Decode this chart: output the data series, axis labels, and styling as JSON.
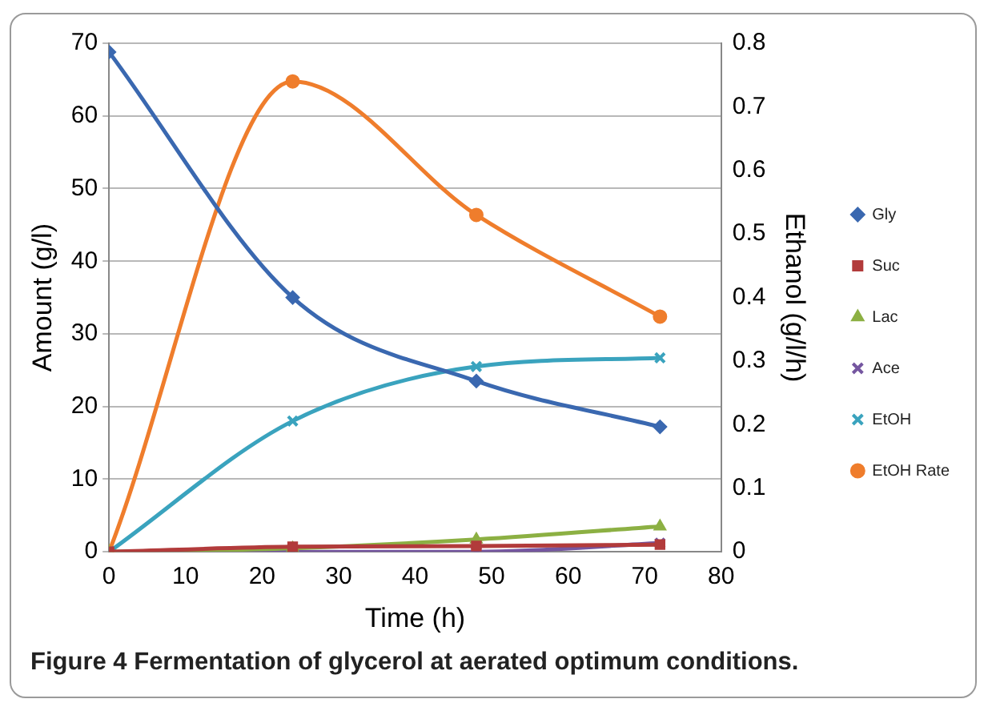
{
  "chart_data": {
    "type": "line",
    "xlabel": "Time (h)",
    "ylabel": "Amount (g/l)",
    "y2label": "Ethanol (g/l/h)",
    "x": [
      0,
      24,
      48,
      72
    ],
    "series": [
      {
        "name": "Gly",
        "color": "#3a68b0",
        "marker": "diamond",
        "values": [
          68.8,
          35,
          23.5,
          17.2
        ]
      },
      {
        "name": "Suc",
        "color": "#b23b3b",
        "marker": "square",
        "values": [
          0,
          0.7,
          0.8,
          1.0
        ]
      },
      {
        "name": "Lac",
        "color": "#8cb043",
        "marker": "triangle",
        "values": [
          0,
          0.5,
          1.7,
          3.5
        ]
      },
      {
        "name": "Ace",
        "color": "#7556a0",
        "marker": "cross",
        "values": [
          0,
          0,
          0,
          1.2
        ]
      },
      {
        "name": "EtOH",
        "color": "#3aa3be",
        "marker": "cross",
        "values": [
          0,
          18,
          25.5,
          26.7
        ]
      },
      {
        "name": "EtOH Rate",
        "color": "#ef7d2c",
        "marker": "circle",
        "axis": "y2",
        "values": [
          0,
          0.74,
          0.53,
          0.37
        ]
      }
    ],
    "xlim": [
      0,
      80
    ],
    "xticks": [
      0,
      10,
      20,
      30,
      40,
      50,
      60,
      70,
      80
    ],
    "ylim": [
      0,
      70
    ],
    "yticks": [
      0,
      10,
      20,
      30,
      40,
      50,
      60,
      70
    ],
    "y2lim": [
      0,
      0.8
    ],
    "y2ticks": [
      0,
      0.1,
      0.2,
      0.3,
      0.4,
      0.5,
      0.6,
      0.7,
      0.8
    ],
    "grid": "y",
    "legend": "right",
    "annotations": [
      "Figure 4 Fermentation of glycerol at aerated optimum conditions."
    ]
  }
}
